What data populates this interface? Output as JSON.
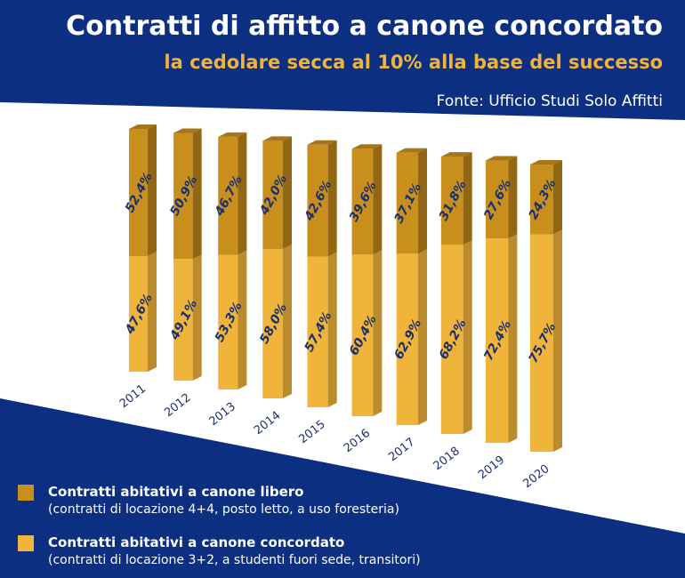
{
  "header": {
    "title": "Contratti di affitto a canone concordato",
    "subtitle": "la cedolare secca al 10% alla base del successo",
    "source": "Fonte: Ufficio Studi Solo Affitti"
  },
  "colors": {
    "background_band": "#0d2f82",
    "libero": "#c98f1c",
    "concordato": "#f0b43a",
    "value_label": "#1a2f6e",
    "year_label": "#1a2f6e"
  },
  "chart_data": {
    "type": "bar",
    "stacked": true,
    "categories": [
      "2011",
      "2012",
      "2013",
      "2014",
      "2015",
      "2016",
      "2017",
      "2018",
      "2019",
      "2020"
    ],
    "series": [
      {
        "name": "Contratti abitativi a canone concordato",
        "values": [
          47.6,
          49.1,
          53.3,
          58.0,
          57.4,
          60.4,
          62.9,
          68.2,
          72.4,
          75.7
        ],
        "labels": [
          "47,6%",
          "49,1%",
          "53,3%",
          "58,0%",
          "57,4%",
          "60,4%",
          "62,9%",
          "68,2%",
          "72,4%",
          "75,7%"
        ]
      },
      {
        "name": "Contratti abitativi a canone libero",
        "values": [
          52.4,
          50.9,
          46.7,
          42.0,
          42.6,
          39.6,
          37.1,
          31.8,
          27.6,
          24.3
        ],
        "labels": [
          "52,4%",
          "50,9%",
          "46,7%",
          "42,0%",
          "42,6%",
          "39,6%",
          "37,1%",
          "31,8%",
          "27,6%",
          "24,3%"
        ]
      }
    ],
    "ylim": [
      0,
      100
    ],
    "grid": false,
    "legend_position": "bottom-left",
    "style": "3d-perspective"
  },
  "legend": [
    {
      "name": "Contratti abitativi a canone libero",
      "description": "(contratti di locazione 4+4, posto letto, a uso foresteria)",
      "color": "#c98f1c"
    },
    {
      "name": "Contratti abitativi a canone concordato",
      "description": "(contratti di locazione 3+2, a studenti fuori sede, transitori)",
      "color": "#f0b43a"
    }
  ]
}
